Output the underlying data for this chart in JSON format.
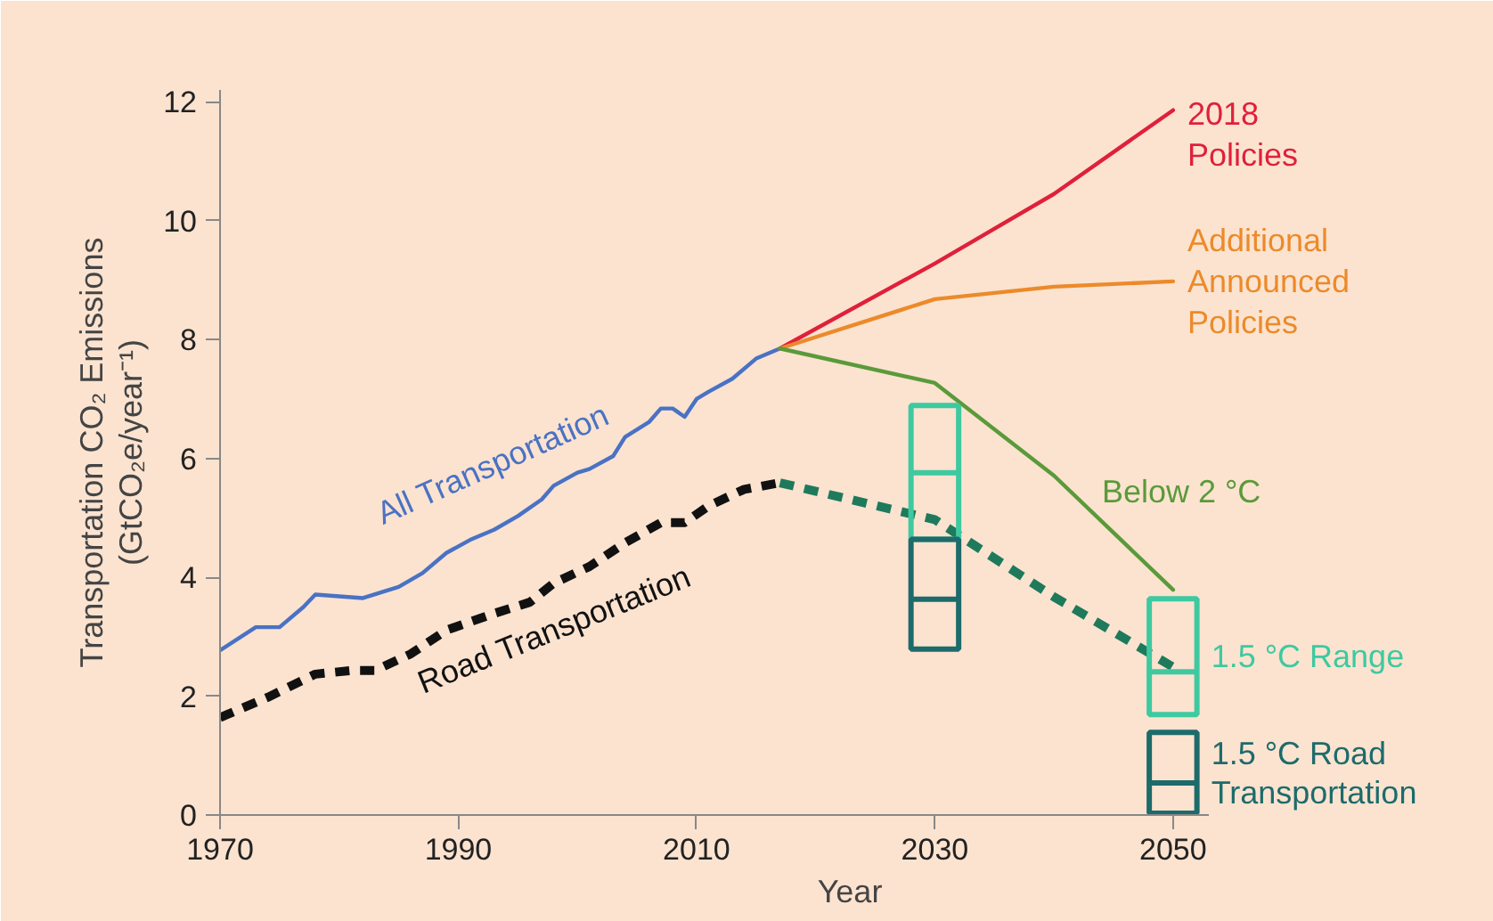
{
  "chart_data": {
    "type": "line",
    "xlabel": "Year",
    "ylabel": "Transportation CO₂ Emissions\n(GtCO₂e/year⁻¹)",
    "xlim": [
      1970,
      2053
    ],
    "ylim": [
      0,
      12.2
    ],
    "xticks": [
      1970,
      1990,
      2010,
      2030,
      2050
    ],
    "yticks": [
      0,
      2,
      4,
      6,
      8,
      10,
      12
    ],
    "grid": false,
    "series": [
      {
        "name": "All Transportation",
        "color": "#4a72c4",
        "line_style": "solid",
        "x": [
          1970,
          1973,
          1975,
          1977,
          1978,
          1980,
          1982,
          1985,
          1987,
          1989,
          1991,
          1993,
          1995,
          1997,
          1998,
          2000,
          2001,
          2003,
          2004,
          2006,
          2007,
          2008,
          2009,
          2010,
          2011,
          2013,
          2015,
          2017
        ],
        "values": [
          2.77,
          3.16,
          3.16,
          3.5,
          3.71,
          3.68,
          3.65,
          3.84,
          4.07,
          4.41,
          4.63,
          4.8,
          5.03,
          5.31,
          5.54,
          5.76,
          5.82,
          6.04,
          6.36,
          6.61,
          6.84,
          6.84,
          6.7,
          7.0,
          7.12,
          7.34,
          7.68,
          7.85
        ]
      },
      {
        "name": "Road Transportation",
        "color": "#111111",
        "line_style": "dashed",
        "x": [
          1970,
          1974,
          1978,
          1981,
          1983,
          1986,
          1989,
          1993,
          1996,
          1998,
          2001,
          2004,
          2007,
          2009,
          2011,
          2014,
          2017
        ],
        "values": [
          1.64,
          1.98,
          2.37,
          2.43,
          2.43,
          2.71,
          3.11,
          3.39,
          3.58,
          3.9,
          4.18,
          4.58,
          4.92,
          4.92,
          5.2,
          5.48,
          5.59
        ]
      },
      {
        "color": "#1f7a5c",
        "line_style": "dashed",
        "x": [
          2017,
          2030,
          2040,
          2050
        ],
        "values": [
          5.59,
          4.97,
          3.67,
          2.49
        ]
      },
      {
        "name": "2018\nPolicies",
        "color": "#e0203a",
        "line_style": "solid",
        "x": [
          2017,
          2030,
          2040,
          2050
        ],
        "values": [
          7.85,
          9.28,
          10.45,
          11.86
        ]
      },
      {
        "name": "Additional\nAnnounced\nPolicies",
        "color": "#ec8a2a",
        "line_style": "solid",
        "x": [
          2017,
          2030,
          2040,
          2050
        ],
        "values": [
          7.85,
          8.68,
          8.89,
          8.98
        ]
      },
      {
        "name": "Below 2 °C",
        "color": "#5a9a3a",
        "line_style": "solid",
        "x": [
          2017,
          2030,
          2040,
          2050
        ],
        "values": [
          7.85,
          7.27,
          5.71,
          3.79
        ]
      },
      {
        "name": "1.5 °C Range",
        "type": "box",
        "color": "#3ec9a0",
        "x": [
          2030,
          2050
        ],
        "boxes": [
          {
            "low": 4.64,
            "q1": 4.64,
            "median": 5.76,
            "q3": 6.89,
            "high": 6.89
          },
          {
            "low": 1.69,
            "q1": 1.69,
            "median": 2.41,
            "q3": 3.64,
            "high": 3.64
          }
        ]
      },
      {
        "name": "1.5 °C Road\nTransportation",
        "type": "box",
        "color": "#1d6b6b",
        "x": [
          2030,
          2050
        ],
        "boxes": [
          {
            "low": 2.79,
            "q1": 2.79,
            "median": 3.63,
            "q3": 4.64,
            "high": 4.64
          },
          {
            "low": 0.03,
            "q1": 0.03,
            "median": 0.54,
            "q3": 1.39,
            "high": 1.39
          }
        ]
      }
    ]
  }
}
